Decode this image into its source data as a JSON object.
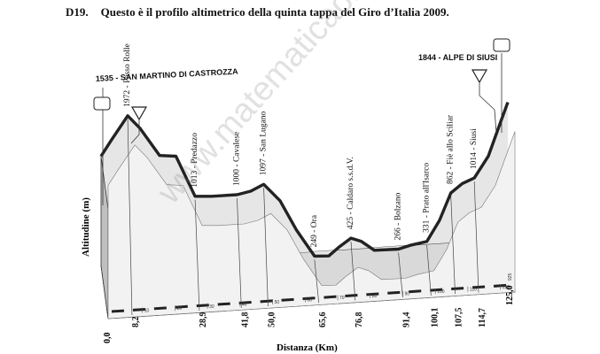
{
  "question": {
    "number": "D19.",
    "text": "Questo è il profilo altimetrico della quinta tappa del Giro d’Italia 2009."
  },
  "watermark": "www.matematicaok.it",
  "chart_data": {
    "type": "area",
    "title": "",
    "xlabel": "Distanza (Km)",
    "ylabel": "Altitudine (m)",
    "xlim": [
      0,
      125
    ],
    "start": {
      "label": "1535 - SAN MARTINO DI CASTROZZA",
      "km": 0.0
    },
    "finish": {
      "label": "1844 - ALPE DI SIUSI",
      "km": 125.0
    },
    "profile_km": [
      0,
      3,
      8.2,
      12,
      18,
      23,
      28.9,
      34,
      41.8,
      46,
      50,
      55,
      60,
      65.6,
      70,
      73,
      76.8,
      80,
      84,
      91.4,
      95,
      100.1,
      104,
      107.5,
      111,
      114.7,
      119,
      123,
      125
    ],
    "profile_alt": [
      1535,
      1700,
      1972,
      1820,
      1500,
      1480,
      1013,
      1000,
      1000,
      1030,
      1097,
      900,
      560,
      249,
      240,
      330,
      425,
      380,
      270,
      266,
      300,
      331,
      560,
      862,
      960,
      1014,
      1250,
      1650,
      1844
    ],
    "waypoints": [
      {
        "km_label": "8,2",
        "alt_label": "1972",
        "name": "Passo Rolle"
      },
      {
        "km_label": "28,9",
        "alt_label": "1013",
        "name": "Predazzo"
      },
      {
        "km_label": "41,8",
        "alt_label": "1000",
        "name": "Cavalese"
      },
      {
        "km_label": "50,0",
        "alt_label": "1097",
        "name": "San Lugano"
      },
      {
        "km_label": "65,6",
        "alt_label": "249",
        "name": "Ora"
      },
      {
        "km_label": "76,8",
        "alt_label": "425",
        "name": "Caldaro s.s.d.V."
      },
      {
        "km_label": "91,4",
        "alt_label": "266",
        "name": "Bolzano"
      },
      {
        "km_label": "100,1",
        "alt_label": "331",
        "name": "Prato all'Isarco"
      },
      {
        "km_label": "107,5",
        "alt_label": "862",
        "name": "Fiè allo Sciliar"
      },
      {
        "km_label": "114,7",
        "alt_label": "1014",
        "name": "Siusi"
      }
    ],
    "x_ticks": [
      "10",
      "20",
      "30",
      "40",
      "50",
      "60",
      "70",
      "80",
      "90",
      "100",
      "110",
      "120"
    ],
    "total_label": "125,0",
    "start_km_label": "0,0",
    "end_marker": "925"
  }
}
